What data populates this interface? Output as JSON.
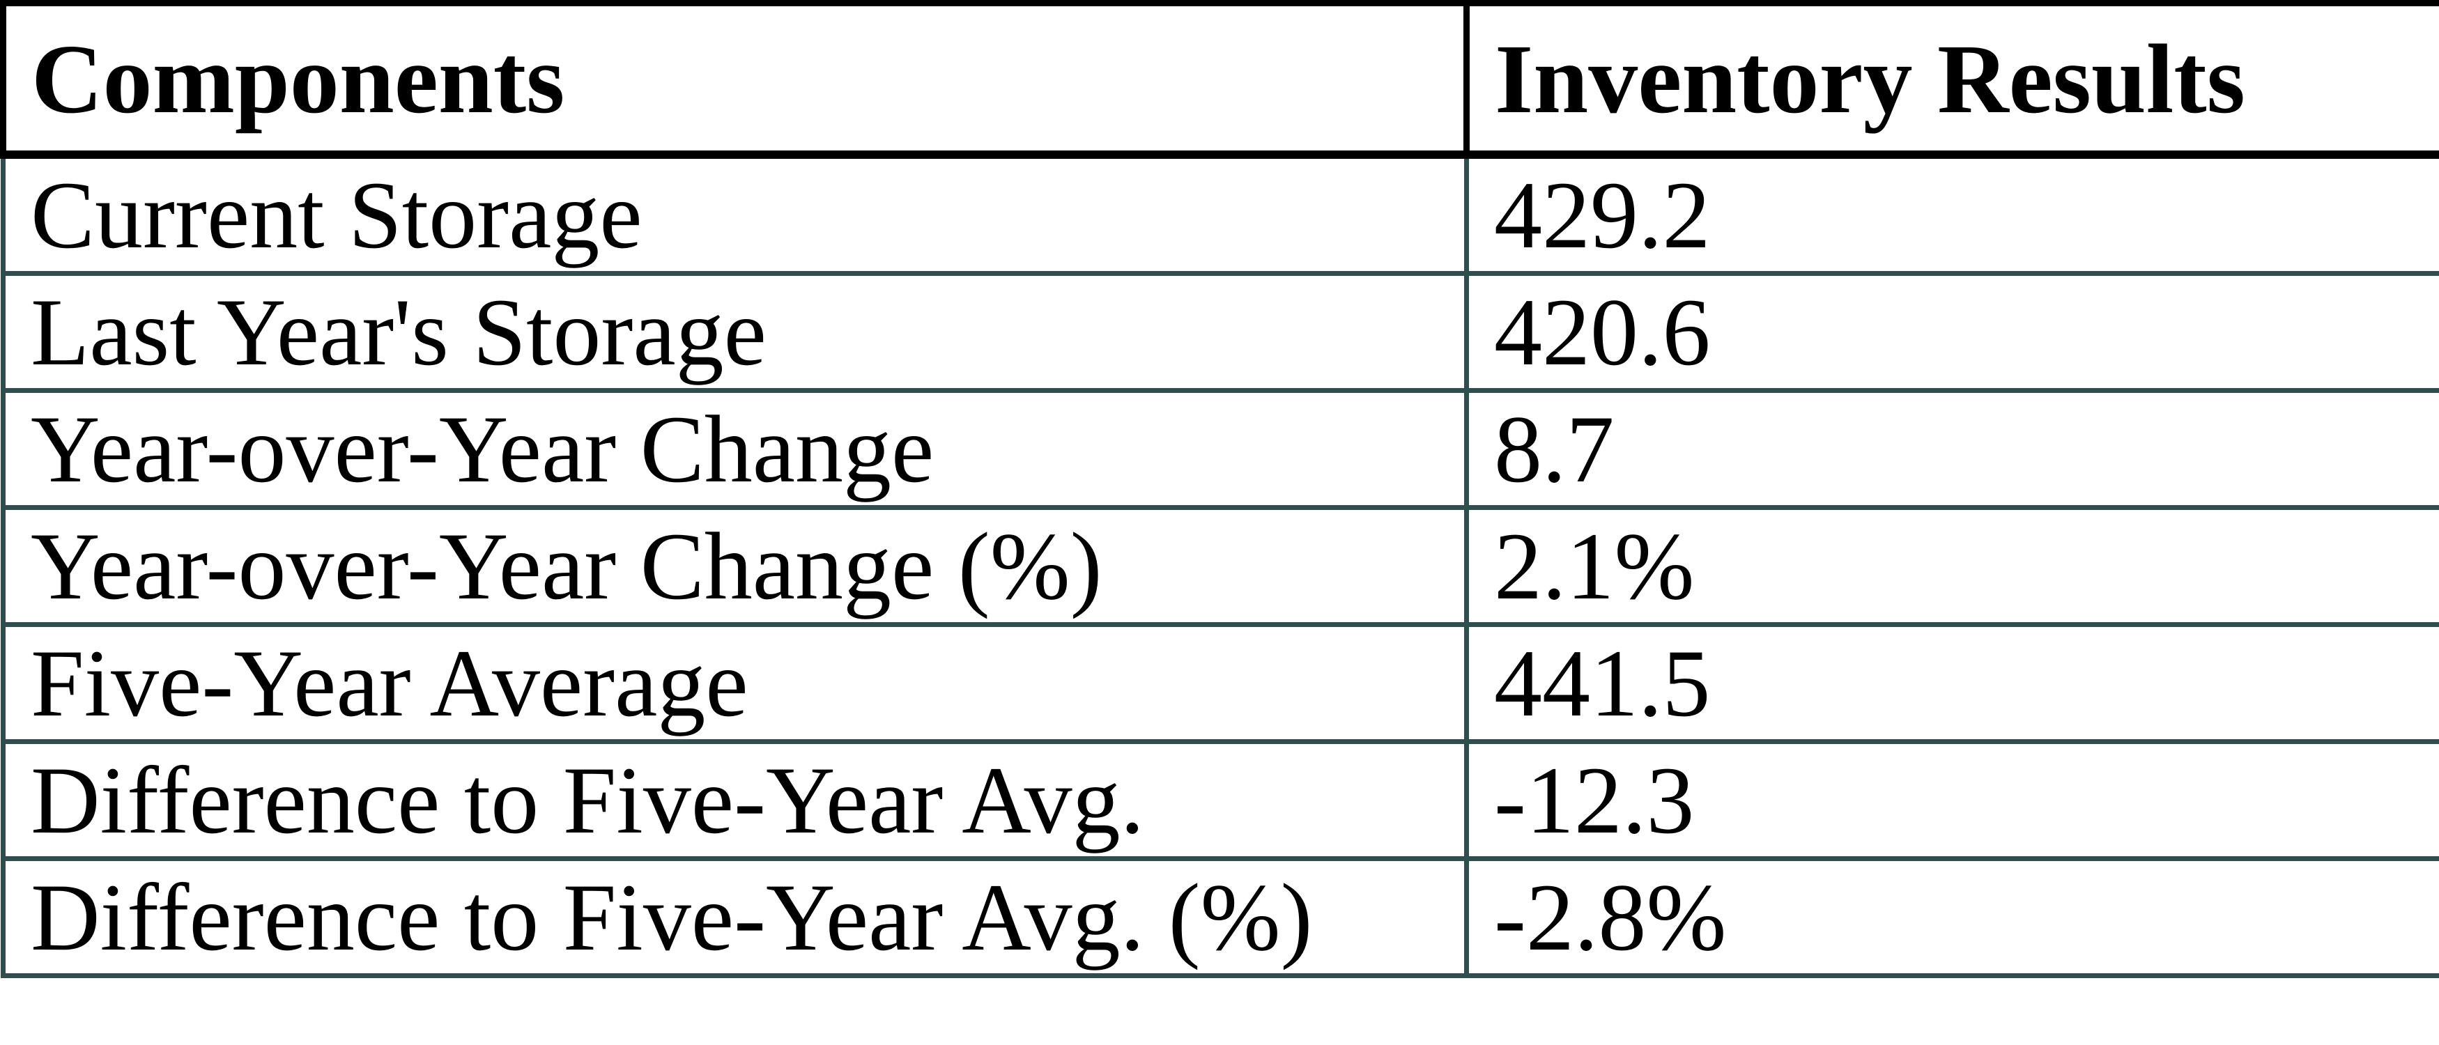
{
  "table": {
    "columns": [
      "Components",
      "Inventory Results"
    ],
    "rows": [
      {
        "component": "Current Storage",
        "result": "429.2"
      },
      {
        "component": "Last Year's Storage",
        "result": "420.6"
      },
      {
        "component": "Year-over-Year Change",
        "result": "8.7"
      },
      {
        "component": "Year-over-Year Change (%)",
        "result": "2.1%"
      },
      {
        "component": "Five-Year Average",
        "result": "441.5"
      },
      {
        "component": "Difference to Five-Year Avg.",
        "result": "-12.3"
      },
      {
        "component": "Difference to Five-Year Avg. (%)",
        "result": "-2.8%"
      }
    ]
  },
  "colors": {
    "header_border": "#000000",
    "body_border": "#2F4F4F",
    "text": "#000000",
    "background": "#ffffff"
  }
}
